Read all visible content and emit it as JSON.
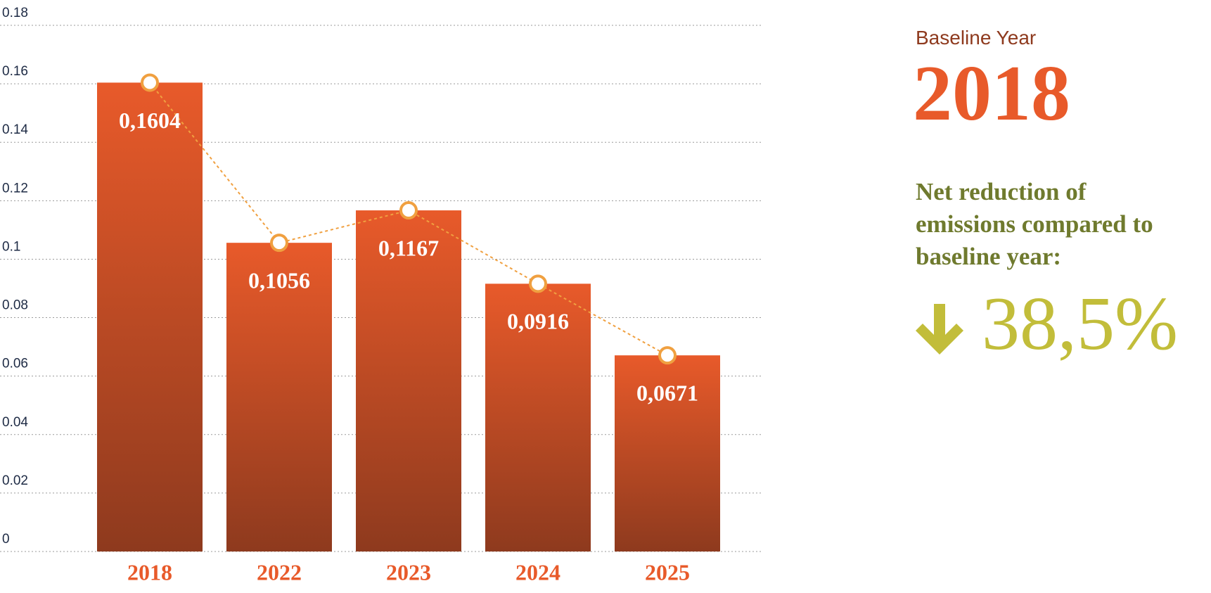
{
  "chart_data": {
    "type": "bar",
    "categories": [
      "2018",
      "2022",
      "2023",
      "2024",
      "2025"
    ],
    "values": [
      0.1604,
      0.1056,
      0.1167,
      0.0916,
      0.0671
    ],
    "value_labels": [
      "0,1604",
      "0,1056",
      "0,1167",
      "0,0916",
      "0,0671"
    ],
    "color": "#e85a2a",
    "color_bottom": "#8e3a1e",
    "line_color": "#f0a040",
    "ylim": [
      0,
      0.18
    ],
    "yticks": [
      0,
      0.02,
      0.04,
      0.06,
      0.08,
      0.1,
      0.12,
      0.14,
      0.16,
      0.18
    ],
    "grid": true
  },
  "side_panel": {
    "label": "Baseline Year",
    "year": "2018",
    "caption": "Net reduction of emissions compared to baseline year:",
    "value": "38,5%"
  }
}
